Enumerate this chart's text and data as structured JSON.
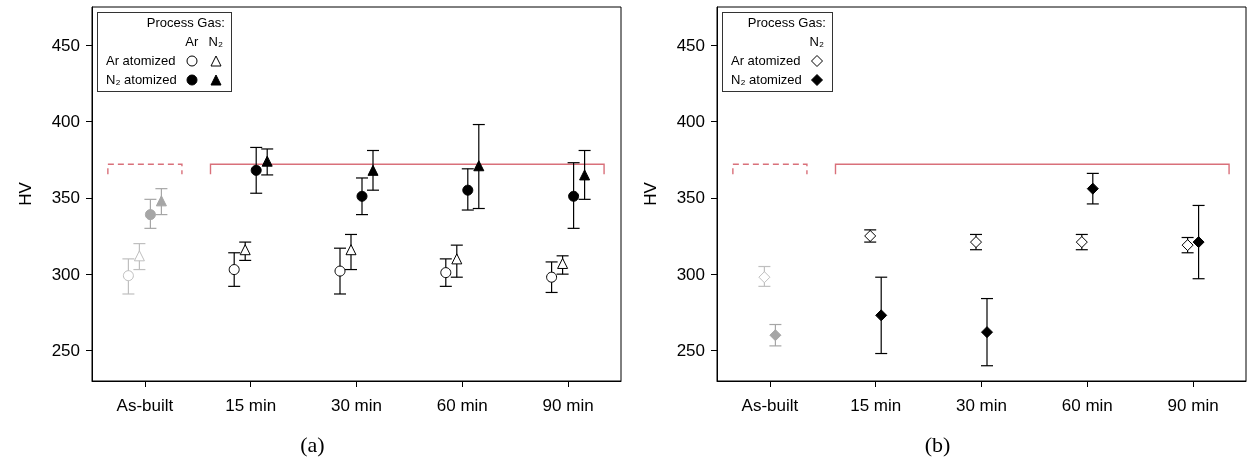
{
  "chart_data": [
    {
      "type": "scatter",
      "title": "(a)",
      "ylabel": "HV",
      "legend_title": "Process Gas:",
      "annotations": [
        "Ar",
        "N₂"
      ],
      "legend": "top left",
      "grid": false,
      "categories": [
        "As-built",
        "15 min",
        "30 min",
        "60 min",
        "90 min"
      ],
      "ylim": [
        230,
        475
      ],
      "yticks": [
        250,
        300,
        350,
        400,
        450
      ],
      "ref_lines": [
        {
          "axis": "y",
          "value": 372,
          "color": "#d9707a",
          "line_style": "dashed"
        },
        {
          "axis": "y",
          "value": 372,
          "color": "#d9707a",
          "line_style": "solid"
        }
      ],
      "series": [
        {
          "name": "Ar atomized",
          "marker": "circle",
          "color": "#ffffff",
          "colors": [
            "#bfbfbf",
            "#000000",
            "#000000",
            "#000000",
            "#000000"
          ],
          "values": [
            299,
            303,
            302,
            301,
            298
          ],
          "errors": [
            [
              287,
              310
            ],
            [
              292,
              314
            ],
            [
              287,
              317
            ],
            [
              292,
              310
            ],
            [
              288,
              308
            ]
          ]
        },
        {
          "marker": "triangle",
          "color": "#ffffff",
          "colors": [
            "#bfbfbf",
            "#000000",
            "#000000",
            "#000000",
            "#000000"
          ],
          "values": [
            312,
            316,
            316,
            310,
            307
          ],
          "errors": [
            [
              303,
              320
            ],
            [
              309,
              321
            ],
            [
              303,
              326
            ],
            [
              298,
              319
            ],
            [
              300,
              312
            ]
          ]
        },
        {
          "name": "N₂ atomized",
          "marker": "circle",
          "colors": [
            "#a6a6a6",
            "#000000",
            "#000000",
            "#000000",
            "#000000"
          ],
          "values": [
            339,
            368,
            351,
            355,
            351
          ],
          "errors": [
            [
              330,
              349
            ],
            [
              353,
              383
            ],
            [
              339,
              363
            ],
            [
              342,
              369
            ],
            [
              330,
              373
            ]
          ]
        },
        {
          "marker": "triangle",
          "colors": [
            "#a6a6a6",
            "#000000",
            "#000000",
            "#000000",
            "#000000"
          ],
          "values": [
            348,
            374,
            368,
            371,
            365
          ],
          "errors": [
            [
              339,
              356
            ],
            [
              365,
              382
            ],
            [
              355,
              381
            ],
            [
              343,
              398
            ],
            [
              349,
              381
            ]
          ]
        }
      ]
    },
    {
      "type": "scatter",
      "title": "(b)",
      "ylabel": "HV",
      "legend_title": "Process Gas:",
      "annotations": [
        "N₂"
      ],
      "legend": "top left",
      "grid": false,
      "categories": [
        "As-built",
        "15 min",
        "30 min",
        "60 min",
        "90 min"
      ],
      "ylim": [
        230,
        475
      ],
      "yticks": [
        250,
        300,
        350,
        400,
        450
      ],
      "ref_lines": [
        {
          "axis": "y",
          "value": 372,
          "color": "#d9707a",
          "line_style": "dashed"
        },
        {
          "axis": "y",
          "value": 372,
          "color": "#d9707a",
          "line_style": "solid"
        }
      ],
      "series": [
        {
          "name": "Ar atomized",
          "marker": "diamond",
          "color": "#ffffff",
          "colors": [
            "#bfbfbf",
            "#000000",
            "#000000",
            "#000000",
            "#000000"
          ],
          "values": [
            298,
            325,
            321,
            321,
            319
          ],
          "errors": [
            [
              292,
              305
            ],
            [
              321,
              329
            ],
            [
              316,
              326
            ],
            [
              316,
              326
            ],
            [
              314,
              324
            ]
          ]
        },
        {
          "name": "N₂ atomized",
          "marker": "diamond",
          "colors": [
            "#a6a6a6",
            "#000000",
            "#000000",
            "#000000",
            "#000000"
          ],
          "values": [
            260,
            273,
            262,
            356,
            321
          ],
          "errors": [
            [
              253,
              267
            ],
            [
              248,
              298
            ],
            [
              240,
              284
            ],
            [
              346,
              366
            ],
            [
              297,
              345
            ]
          ]
        }
      ]
    }
  ]
}
